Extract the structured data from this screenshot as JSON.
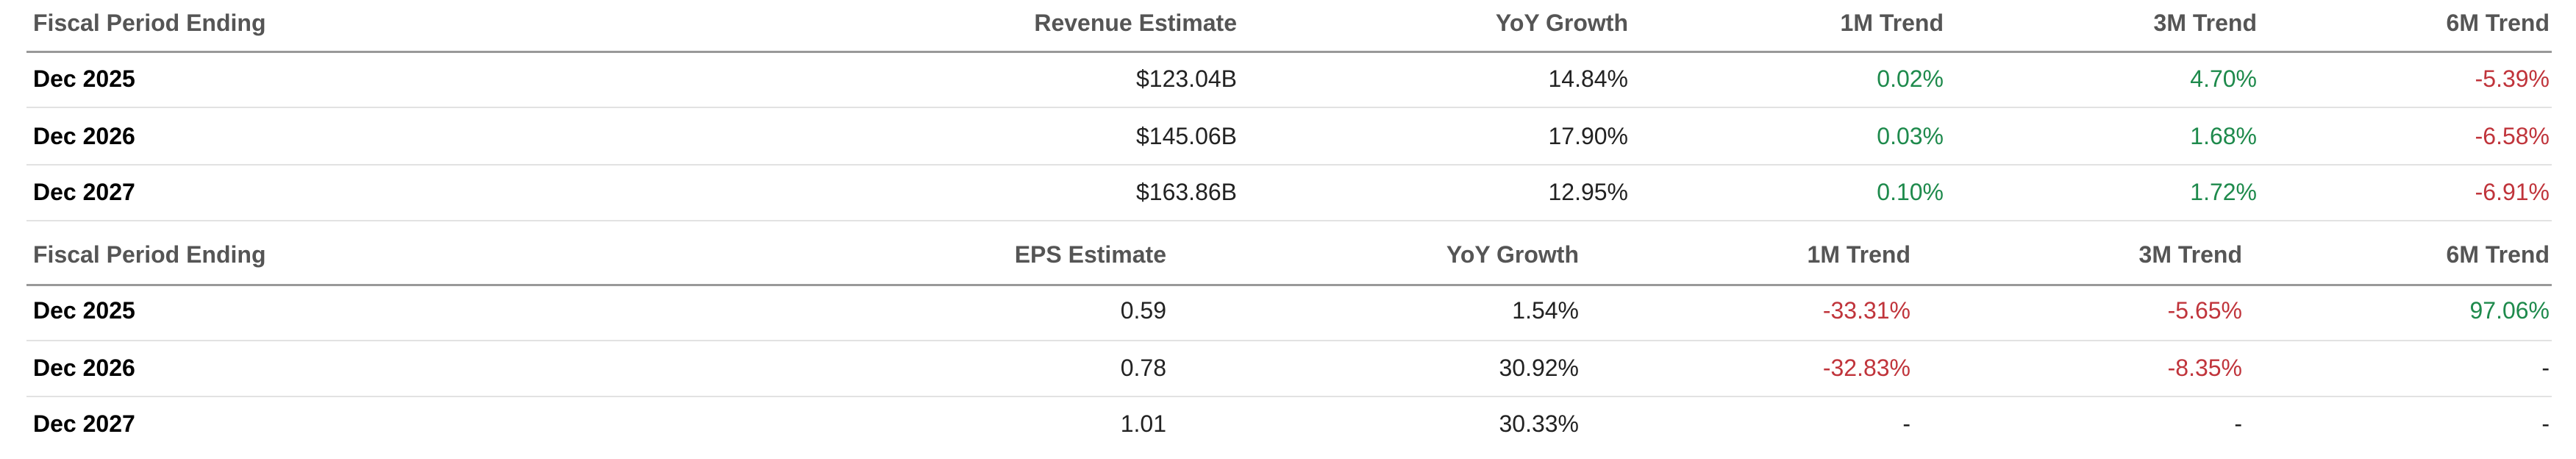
{
  "tables": [
    {
      "headers": [
        "Fiscal Period Ending",
        "Revenue Estimate",
        "YoY Growth",
        "1M Trend",
        "3M Trend",
        "6M Trend"
      ],
      "rows": [
        [
          "Dec 2025",
          "$123.04B",
          "14.84%",
          "0.02%",
          "4.70%",
          "-5.39%"
        ],
        [
          "Dec 2026",
          "$145.06B",
          "17.90%",
          "0.03%",
          "1.68%",
          "-6.58%"
        ],
        [
          "Dec 2027",
          "$163.86B",
          "12.95%",
          "0.10%",
          "1.72%",
          "-6.91%"
        ]
      ]
    },
    {
      "headers": [
        "Fiscal Period Ending",
        "EPS Estimate",
        "YoY Growth",
        "1M Trend",
        "3M Trend",
        "6M Trend"
      ],
      "rows": [
        [
          "Dec 2025",
          "0.59",
          "1.54%",
          "-33.31%",
          "-5.65%",
          "97.06%"
        ],
        [
          "Dec 2026",
          "0.78",
          "30.92%",
          "-32.83%",
          "-8.35%",
          "-"
        ],
        [
          "Dec 2027",
          "1.01",
          "30.33%",
          "-",
          "-",
          "-"
        ]
      ]
    }
  ]
}
